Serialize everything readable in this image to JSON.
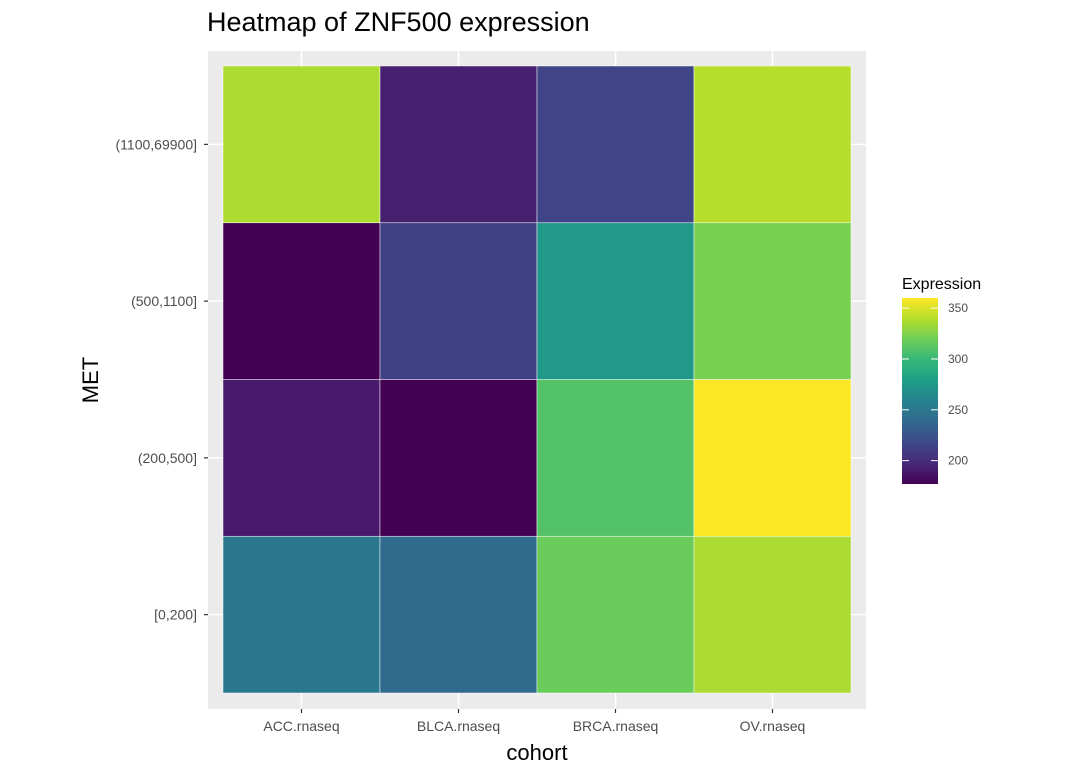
{
  "chart_data": {
    "type": "heatmap",
    "title": "Heatmap of ZNF500 expression",
    "xlabel": "cohort",
    "ylabel": "MET",
    "x_categories": [
      "ACC.rnaseq",
      "BLCA.rnaseq",
      "BRCA.rnaseq",
      "OV.rnaseq"
    ],
    "y_categories": [
      "[0,200]",
      "(200,500]",
      "(500,1100]",
      "(1100,69900]"
    ],
    "values": [
      [
        250,
        240,
        318,
        337
      ],
      [
        190,
        177,
        310,
        360
      ],
      [
        177,
        213,
        275,
        322
      ],
      [
        337,
        193,
        215,
        340
      ]
    ],
    "legend": {
      "title": "Expression",
      "ticks": [
        200,
        250,
        300,
        350
      ],
      "range": [
        177,
        360
      ]
    },
    "colors": {
      "panel_background": "#ebebeb",
      "grid": "#ffffff",
      "tile_border": "#ffffff",
      "palette": [
        "#440154",
        "#482878",
        "#3e4989",
        "#31688e",
        "#26828e",
        "#1f9e89",
        "#35b779",
        "#6ece58",
        "#b5de2b",
        "#fde725"
      ]
    }
  }
}
